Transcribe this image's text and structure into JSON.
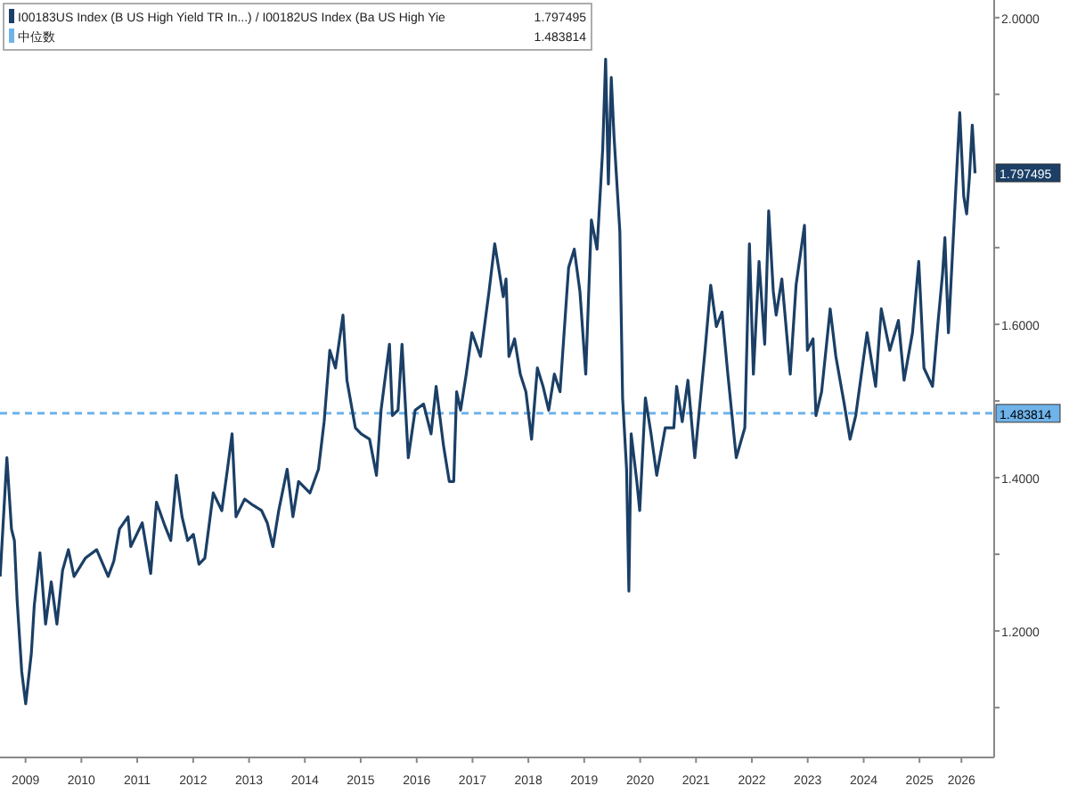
{
  "chart_data": {
    "type": "line",
    "x": [
      "2009-01-16",
      "2009-03-01",
      "2009-03-31",
      "2009-04-19",
      "2009-05-07",
      "2009-06-06",
      "2009-07-02",
      "2009-08-08",
      "2009-08-27",
      "2009-10-03",
      "2009-11-09",
      "2009-12-16",
      "2010-01-22",
      "2010-02-28",
      "2010-04-07",
      "2010-05-14",
      "2010-07-27",
      "2010-10-09",
      "2010-12-23",
      "2011-01-29",
      "2011-03-07",
      "2011-05-02",
      "2011-05-20",
      "2011-08-03",
      "2011-09-27",
      "2011-11-04",
      "2011-12-29",
      "2012-02-05",
      "2012-03-13",
      "2012-04-19",
      "2012-05-26",
      "2012-07-02",
      "2012-08-08",
      "2012-09-15",
      "2012-11-09",
      "2013-01-04",
      "2013-02-10",
      "2013-03-12",
      "2013-04-07",
      "2013-06-02",
      "2013-07-27",
      "2013-09-21",
      "2013-10-28",
      "2013-12-04",
      "2014-01-11",
      "2014-03-07",
      "2014-04-14",
      "2014-05-21",
      "2014-08-03",
      "2014-09-28",
      "2014-11-04",
      "2014-12-11",
      "2015-01-17",
      "2015-03-07",
      "2015-04-02",
      "2015-05-27",
      "2015-07-04",
      "2015-08-28",
      "2015-10-12",
      "2015-11-11",
      "2016-01-05",
      "2016-01-24",
      "2016-03-01",
      "2016-03-27",
      "2016-05-07",
      "2016-06-21",
      "2016-08-15",
      "2016-10-03",
      "2016-11-05",
      "2016-12-23",
      "2017-01-30",
      "2017-02-28",
      "2017-03-19",
      "2017-04-14",
      "2017-05-21",
      "2017-06-27",
      "2017-08-22",
      "2017-10-17",
      "2017-11-23",
      "2018-01-18",
      "2018-02-05",
      "2018-02-24",
      "2018-04-02",
      "2018-05-09",
      "2018-06-15",
      "2018-07-22",
      "2018-08-29",
      "2018-10-05",
      "2018-11-11",
      "2018-12-18",
      "2019-01-24",
      "2019-03-21",
      "2019-04-27",
      "2019-06-03",
      "2019-07-11",
      "2019-08-17",
      "2019-09-23",
      "2019-10-30",
      "2019-11-18",
      "2019-12-06",
      "2019-12-25",
      "2020-01-12",
      "2020-02-19",
      "2020-03-08",
      "2020-04-03",
      "2020-04-18",
      "2020-05-03",
      "2020-06-09",
      "2020-06-28",
      "2020-08-04",
      "2020-09-10",
      "2020-10-17",
      "2020-12-12",
      "2021-02-06",
      "2021-02-24",
      "2021-04-02",
      "2021-05-09",
      "2021-06-23",
      "2021-08-29",
      "2021-10-05",
      "2021-11-11",
      "2021-12-18",
      "2022-01-25",
      "2022-03-21",
      "2022-05-16",
      "2022-06-15",
      "2022-07-11",
      "2022-08-17",
      "2022-09-23",
      "2022-10-19",
      "2022-11-18",
      "2022-12-07",
      "2023-01-13",
      "2023-03-09",
      "2023-04-16",
      "2023-06-10",
      "2023-06-29",
      "2023-08-05",
      "2023-08-24",
      "2023-09-30",
      "2023-11-25",
      "2024-01-01",
      "2024-02-25",
      "2024-04-03",
      "2024-05-10",
      "2024-07-23",
      "2024-09-17",
      "2024-10-24",
      "2024-12-19",
      "2025-02-13",
      "2025-03-22",
      "2025-05-16",
      "2025-06-26",
      "2025-07-30",
      "2025-09-24",
      "2025-10-31",
      "2025-11-29",
      "2025-12-14",
      "2026-01-06",
      "2026-02-01",
      "2026-02-27",
      "2026-03-21",
      "2026-04-16",
      "2026-05-05",
      "2026-05-23",
      "2026-06-11",
      "2026-06-29"
    ],
    "series": [
      {
        "name": "I00183US Index (B US High Yield  TR In...) / I00182US Index (Ba US High Yie",
        "color": "#1b3f66",
        "values": [
          1.271,
          1.426,
          1.333,
          1.318,
          1.24,
          1.147,
          1.105,
          1.171,
          1.233,
          1.302,
          1.209,
          1.264,
          1.209,
          1.279,
          1.306,
          1.271,
          1.295,
          1.306,
          1.271,
          1.291,
          1.333,
          1.349,
          1.31,
          1.341,
          1.275,
          1.368,
          1.337,
          1.318,
          1.403,
          1.349,
          1.318,
          1.326,
          1.287,
          1.295,
          1.38,
          1.357,
          1.411,
          1.457,
          1.349,
          1.372,
          1.364,
          1.357,
          1.341,
          1.31,
          1.357,
          1.411,
          1.349,
          1.395,
          1.38,
          1.411,
          1.473,
          1.566,
          1.543,
          1.612,
          1.527,
          1.465,
          1.457,
          1.45,
          1.403,
          1.488,
          1.574,
          1.481,
          1.488,
          1.574,
          1.426,
          1.488,
          1.496,
          1.457,
          1.519,
          1.442,
          1.395,
          1.395,
          1.512,
          1.488,
          1.535,
          1.589,
          1.558,
          1.643,
          1.705,
          1.636,
          1.659,
          1.558,
          1.581,
          1.535,
          1.512,
          1.45,
          1.543,
          1.519,
          1.488,
          1.535,
          1.512,
          1.674,
          1.698,
          1.643,
          1.535,
          1.736,
          1.698,
          1.829,
          1.946,
          1.783,
          1.922,
          1.845,
          1.721,
          1.504,
          1.411,
          1.252,
          1.457,
          1.395,
          1.357,
          1.504,
          1.457,
          1.403,
          1.465,
          1.465,
          1.519,
          1.473,
          1.527,
          1.426,
          1.566,
          1.651,
          1.597,
          1.616,
          1.535,
          1.426,
          1.465,
          1.705,
          1.535,
          1.682,
          1.574,
          1.748,
          1.643,
          1.612,
          1.659,
          1.535,
          1.651,
          1.729,
          1.566,
          1.581,
          1.481,
          1.512,
          1.62,
          1.558,
          1.496,
          1.45,
          1.481,
          1.589,
          1.519,
          1.62,
          1.566,
          1.605,
          1.527,
          1.589,
          1.682,
          1.543,
          1.519,
          1.605,
          1.667,
          1.713,
          1.589,
          1.69,
          1.791,
          1.876,
          1.767,
          1.744,
          1.791,
          1.86,
          1.797
        ]
      }
    ],
    "ref_lines": [
      {
        "axis": "y",
        "value": 1.483814,
        "label": "中位数",
        "color": "#6fb3ea",
        "line_style": "dashed"
      }
    ],
    "annotations": [
      {
        "text": "1.797495",
        "x": "2026-06-29",
        "y": 1.797495
      },
      {
        "text": "1.483814",
        "x": "2026-06-29",
        "y": 1.483814
      }
    ],
    "xlim": [
      "2009-01-15",
      "2026-11-01"
    ],
    "xticks": [
      {
        "value": "2009-07-01",
        "label": "2009"
      },
      {
        "value": "2010-07-01",
        "label": "2010"
      },
      {
        "value": "2011-07-01",
        "label": "2011"
      },
      {
        "value": "2012-07-01",
        "label": "2012"
      },
      {
        "value": "2013-07-01",
        "label": "2013"
      },
      {
        "value": "2014-07-01",
        "label": "2014"
      },
      {
        "value": "2015-07-01",
        "label": "2015"
      },
      {
        "value": "2016-07-01",
        "label": "2016"
      },
      {
        "value": "2017-07-01",
        "label": "2017"
      },
      {
        "value": "2018-07-01",
        "label": "2018"
      },
      {
        "value": "2019-07-01",
        "label": "2019"
      },
      {
        "value": "2020-07-01",
        "label": "2020"
      },
      {
        "value": "2021-07-01",
        "label": "2021"
      },
      {
        "value": "2022-07-01",
        "label": "2022"
      },
      {
        "value": "2023-07-01",
        "label": "2023"
      },
      {
        "value": "2024-07-01",
        "label": "2024"
      },
      {
        "value": "2025-07-01",
        "label": "2025"
      },
      {
        "value": "2026-04-01",
        "label": "2026"
      }
    ],
    "ylim": [
      1.035,
      2.023
    ],
    "yticks": [
      {
        "value": 1.1,
        "label": null
      },
      {
        "value": 1.2,
        "label": "1.2000"
      },
      {
        "value": 1.3,
        "label": null
      },
      {
        "value": 1.4,
        "label": "1.4000"
      },
      {
        "value": 1.5,
        "label": null
      },
      {
        "value": 1.6,
        "label": "1.6000"
      },
      {
        "value": 1.7,
        "label": null
      },
      {
        "value": 1.8,
        "label": null
      },
      {
        "value": 1.9,
        "label": null
      },
      {
        "value": 2.0,
        "label": "2.0000"
      }
    ],
    "legend": "top left",
    "grid": false,
    "line_style": "solid",
    "marker": "none"
  }
}
